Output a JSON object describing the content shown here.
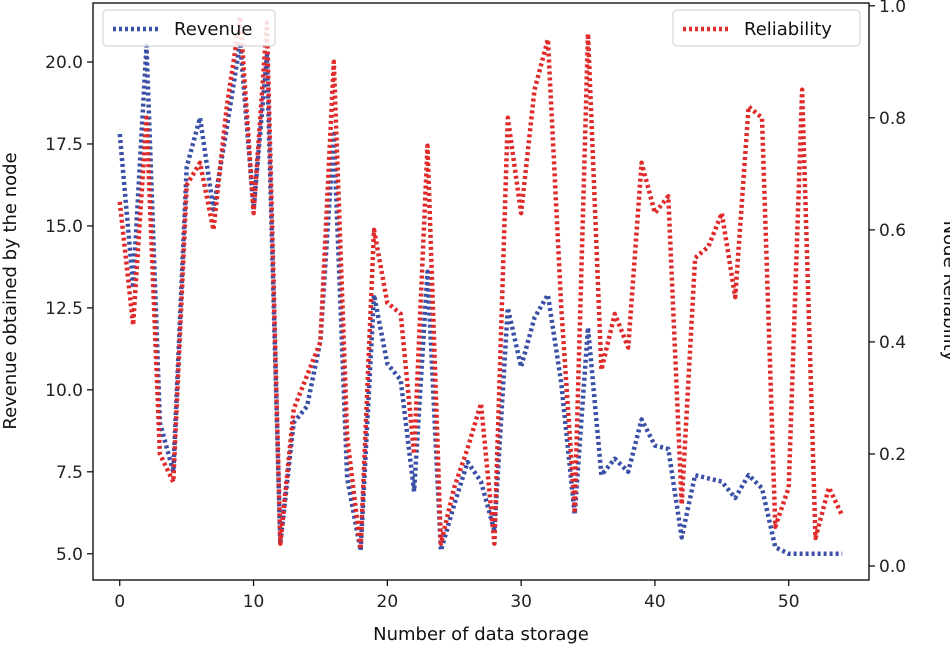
{
  "chart_data": {
    "type": "line",
    "title": "",
    "xlabel": "Number of data storage",
    "ylabel": "Revenue obtained by the node",
    "y2label": "Node Reliability",
    "xlim": [
      -2,
      56
    ],
    "ylim": [
      4.2,
      21.8
    ],
    "y2lim": [
      -0.025,
      1.005
    ],
    "xticks": [
      0,
      10,
      20,
      30,
      40,
      50
    ],
    "yticks": [
      5.0,
      7.5,
      10.0,
      12.5,
      15.0,
      17.5,
      20.0
    ],
    "ytick_labels": [
      "5.0",
      "7.5",
      "10.0",
      "12.5",
      "15.0",
      "17.5",
      "20.0"
    ],
    "y2ticks": [
      0.0,
      0.2,
      0.4,
      0.6,
      0.8,
      1.0
    ],
    "y2tick_labels": [
      "0.0",
      "0.2",
      "0.4",
      "0.6",
      "0.8",
      "1.0"
    ],
    "grid": false,
    "x": [
      0,
      1,
      2,
      3,
      4,
      5,
      6,
      7,
      8,
      9,
      10,
      11,
      12,
      13,
      14,
      15,
      16,
      17,
      18,
      19,
      20,
      21,
      22,
      23,
      24,
      25,
      26,
      27,
      28,
      29,
      30,
      31,
      32,
      33,
      34,
      35,
      36,
      37,
      38,
      39,
      40,
      41,
      42,
      43,
      44,
      45,
      46,
      47,
      48,
      49,
      50,
      51,
      52,
      53,
      54
    ],
    "series": [
      {
        "name": "Revenue",
        "axis": "left",
        "color": "#3a4fa6",
        "legend_position": "top-left",
        "values": [
          17.8,
          13.2,
          20.5,
          9.0,
          7.5,
          16.8,
          18.3,
          15.5,
          18.0,
          20.6,
          15.5,
          20.2,
          5.3,
          9.0,
          9.5,
          11.5,
          17.8,
          7.3,
          5.1,
          12.9,
          10.8,
          10.3,
          6.9,
          13.6,
          5.1,
          6.5,
          7.8,
          7.2,
          5.7,
          12.5,
          10.7,
          12.2,
          12.9,
          10.2,
          6.2,
          11.9,
          7.4,
          7.9,
          7.5,
          9.1,
          8.3,
          8.2,
          5.5,
          7.4,
          7.3,
          7.2,
          6.7,
          7.4,
          7.0,
          5.2,
          5.0,
          5.0,
          5.0,
          5.0,
          5.0
        ]
      },
      {
        "name": "Reliability",
        "axis": "right",
        "color": "#e02a2a",
        "legend_position": "top-right",
        "values": [
          0.65,
          0.43,
          0.8,
          0.2,
          0.15,
          0.68,
          0.72,
          0.6,
          0.82,
          0.98,
          0.63,
          0.97,
          0.04,
          0.28,
          0.34,
          0.4,
          0.9,
          0.23,
          0.03,
          0.6,
          0.47,
          0.45,
          0.2,
          0.75,
          0.04,
          0.14,
          0.21,
          0.29,
          0.04,
          0.8,
          0.63,
          0.85,
          0.94,
          0.46,
          0.1,
          0.95,
          0.35,
          0.45,
          0.39,
          0.72,
          0.63,
          0.66,
          0.11,
          0.55,
          0.57,
          0.63,
          0.48,
          0.82,
          0.8,
          0.07,
          0.14,
          0.85,
          0.05,
          0.14,
          0.09
        ]
      }
    ]
  }
}
